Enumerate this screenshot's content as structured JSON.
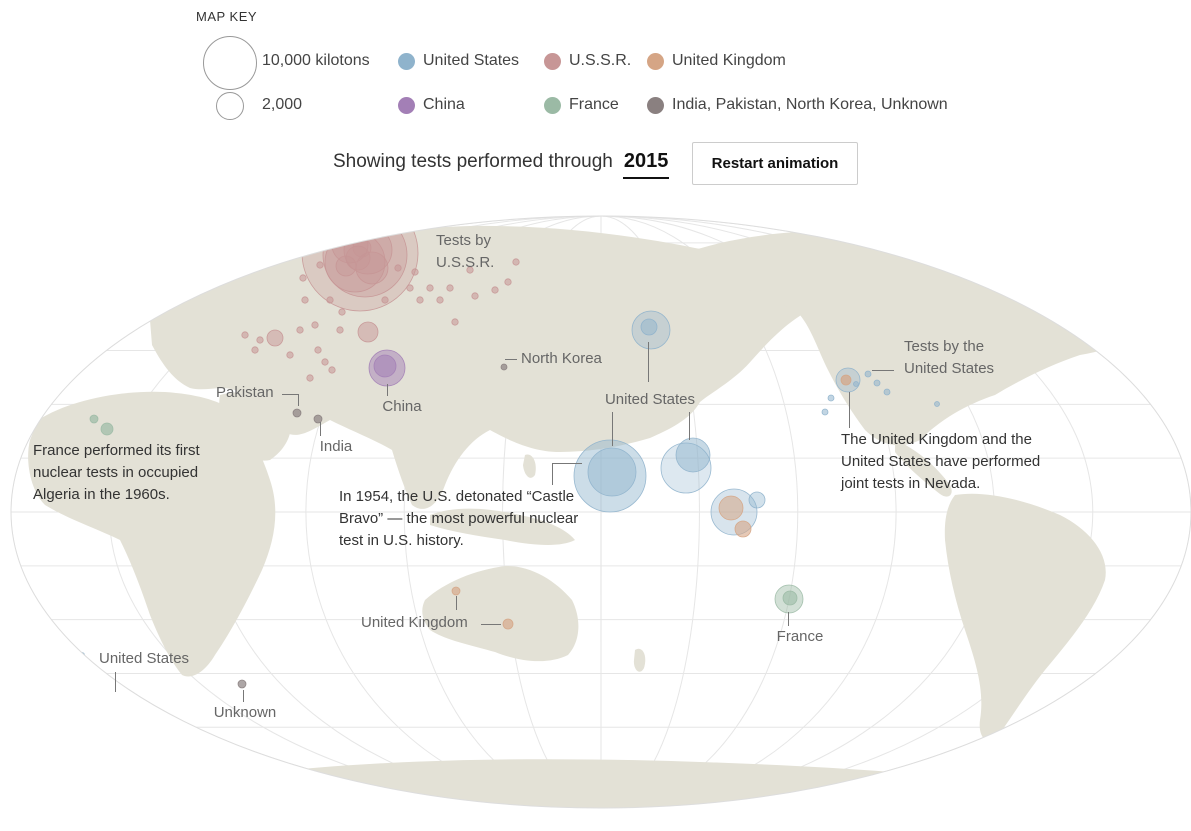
{
  "map_key": {
    "title": "MAP KEY",
    "size_large_label": "10,000 kilotons",
    "size_small_label": "2,000"
  },
  "legend": [
    {
      "label": "United States",
      "color": "#8fb3cc"
    },
    {
      "label": "U.S.S.R.",
      "color": "#c79696"
    },
    {
      "label": "United Kingdom",
      "color": "#d5a585"
    },
    {
      "label": "China",
      "color": "#a37fb6"
    },
    {
      "label": "France",
      "color": "#9bbaa5"
    },
    {
      "label": "India, Pakistan, North Korea, Unknown",
      "color": "#8a8080"
    }
  ],
  "status": {
    "prefix": "Showing tests performed through",
    "year": "2015"
  },
  "controls": {
    "restart_label": "Restart animation"
  },
  "map": {
    "land_color": "#e3e1d6",
    "grid_color": "#e6e6e6"
  },
  "annotations": {
    "ussr": "Tests by\nU.S.S.R.",
    "north_korea": "North Korea",
    "pakistan": "Pakistan",
    "china": "China",
    "india": "India",
    "france_algeria": "France performed its first\nnuclear tests in occupied\nAlgeria in the 1960s.",
    "us_pacific": "United States",
    "castle_bravo": "In 1954, the U.S. detonated “Castle\nBravo” — the most powerful nuclear\ntest in U.S. history.",
    "us_nevada": "Tests by the\nUnited States",
    "uk_us_nevada": "The United Kingdom and the\nUnited States have performed\njoint tests in Nevada.",
    "uk_australia": "United Kingdom",
    "france_pacific": "France",
    "us_south_atlantic": "United States",
    "unknown": "Unknown"
  }
}
